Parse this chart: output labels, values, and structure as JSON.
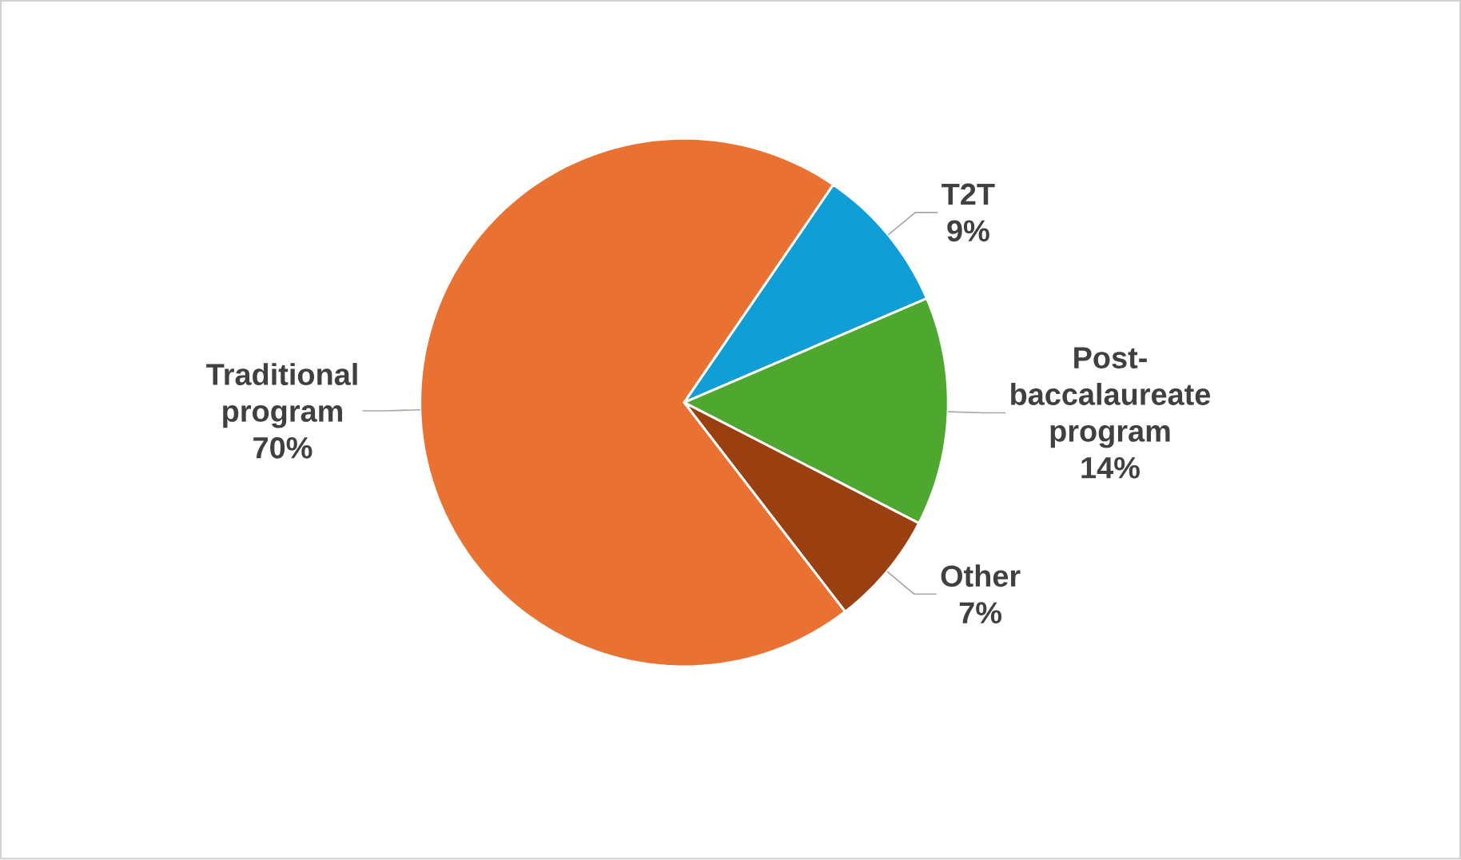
{
  "chart_data": {
    "type": "pie",
    "categories": [
      "T2T",
      "Post-baccalaureate program",
      "Other",
      "Traditional program"
    ],
    "values": [
      9,
      14,
      7,
      70
    ],
    "value_labels": [
      "9%",
      "14%",
      "7%",
      "70%"
    ],
    "colors": [
      "#0f9ed5",
      "#4ea72e",
      "#9a3f10",
      "#e97132"
    ]
  }
}
